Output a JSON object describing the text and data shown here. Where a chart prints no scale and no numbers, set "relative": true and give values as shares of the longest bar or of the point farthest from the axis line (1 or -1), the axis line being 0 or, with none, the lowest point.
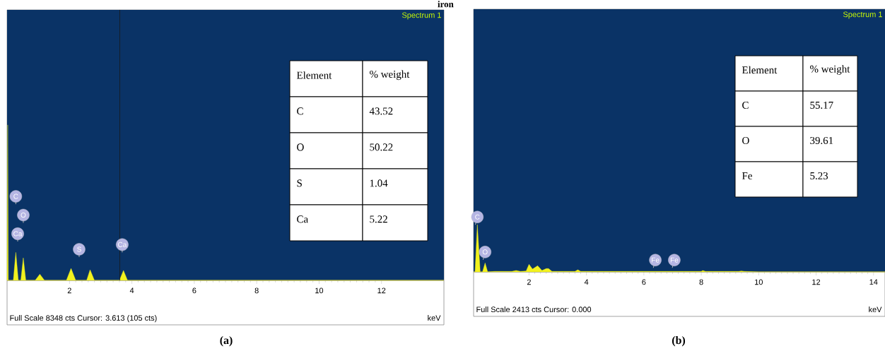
{
  "chart_data": [
    {
      "type": "area",
      "title": "Spectrum 1",
      "xlabel": "keV",
      "relative": true,
      "color": "#f2f21e",
      "x": [
        0,
        0.02,
        0.04,
        0.1,
        0.2,
        0.28,
        0.36,
        0.44,
        0.52,
        0.6,
        0.9,
        1.05,
        1.2,
        1.9,
        2.05,
        2.2,
        2.55,
        2.66,
        2.8,
        3.6,
        3.73,
        3.86,
        4.1,
        14
      ],
      "values": [
        0,
        1,
        0,
        0,
        0,
        0.18,
        0,
        0,
        0.145,
        0,
        0,
        0.04,
        0,
        0,
        0.077,
        0,
        0,
        0.068,
        0,
        0,
        0.064,
        0,
        0,
        0
      ],
      "xlim": [
        0,
        14
      ],
      "xticks": [
        2,
        4,
        6,
        8,
        10,
        12
      ],
      "ref_lines": [
        {
          "axis": "x",
          "value": 3.613,
          "color": "#1a1a1a"
        }
      ],
      "annotations": [
        "Full Scale 8348 cts Cursor: 3.613  (105 cts)",
        "(a)",
        "iron",
        "Element",
        "% weight",
        "C",
        "43.52",
        "O",
        "50.22",
        "S",
        "1.04",
        "Ca",
        "5.22",
        {
          "text": "C",
          "x": 0.28,
          "y": 0.54
        },
        {
          "text": "O",
          "x": 0.52,
          "y": 0.42
        },
        {
          "text": "Ca",
          "x": 0.34,
          "y": 0.3
        },
        {
          "text": "S",
          "x": 2.31,
          "y": 0.2
        },
        {
          "text": "Ca",
          "x": 3.69,
          "y": 0.23
        }
      ]
    },
    {
      "type": "area",
      "title": "Spectrum 1",
      "xlabel": "keV",
      "relative": true,
      "color": "#f2f21e",
      "x": [
        0.07,
        0.12,
        0.2,
        0.3,
        0.38,
        0.47,
        0.56,
        0.8,
        1.4,
        1.55,
        1.7,
        1.9,
        2.0,
        2.12,
        2.3,
        2.45,
        2.6,
        2.68,
        2.8,
        3.0,
        3.6,
        3.7,
        3.8,
        4.5,
        8.0,
        8.05,
        8.15,
        9.3,
        9.4,
        9.5,
        10,
        14.4
      ],
      "values": [
        0,
        0,
        1,
        0,
        0,
        0.19,
        0,
        0.01,
        0.01,
        0.03,
        0.01,
        0.02,
        0.16,
        0.06,
        0.13,
        0.03,
        0.07,
        0.07,
        0.01,
        0.01,
        0.01,
        0.045,
        0.01,
        0.01,
        0.01,
        0.03,
        0.01,
        0.01,
        0.02,
        0.01,
        0,
        0
      ],
      "xlim": [
        0.07,
        14.4
      ],
      "xticks": [
        2,
        4,
        6,
        8,
        10,
        12,
        14
      ],
      "annotations": [
        "Full Scale 2413 cts Cursor: 0.000",
        "(b)",
        "Element",
        "% weight",
        "C",
        "55.17",
        "O",
        "39.61",
        "Fe",
        "5.23",
        {
          "text": "C",
          "x": 0.2,
          "y": 1.16
        },
        {
          "text": "O",
          "x": 0.47,
          "y": 0.42
        },
        {
          "text": "Fe",
          "x": 6.4,
          "y": 0.25
        },
        {
          "text": "Fe",
          "x": 7.06,
          "y": 0.25
        }
      ]
    }
  ]
}
